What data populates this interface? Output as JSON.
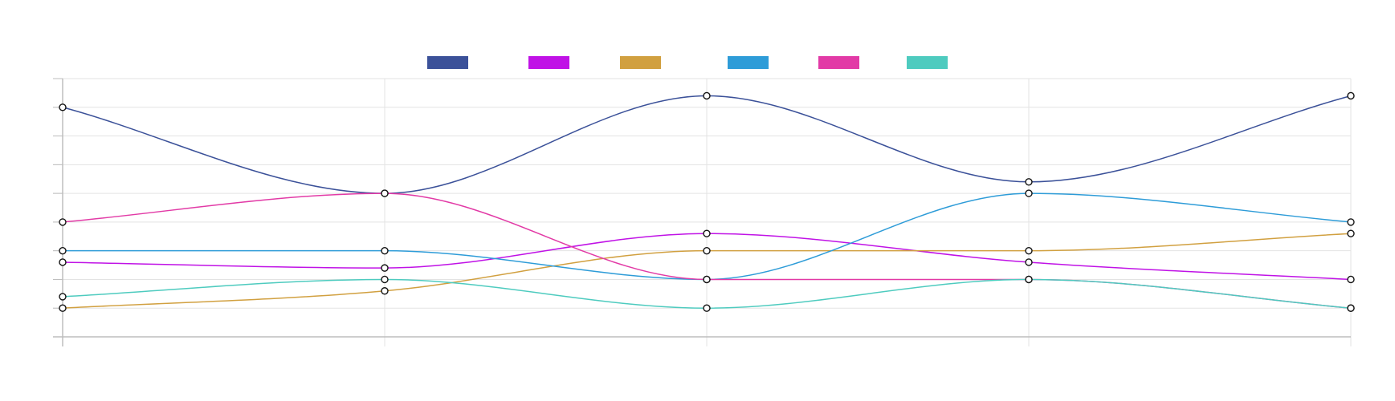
{
  "chart_data": {
    "type": "line",
    "title": "",
    "xlabel": "",
    "ylabel": "",
    "categories": [
      "",
      "",
      "",
      "",
      ""
    ],
    "ylim": [
      0,
      9
    ],
    "grid": true,
    "legend_position": "top-center",
    "curve": "smooth",
    "series": [
      {
        "name": "",
        "color": "#3b5199",
        "values": [
          8,
          5,
          8.4,
          5.4,
          8.4
        ]
      },
      {
        "name": "",
        "color": "#c012e6",
        "values": [
          2.6,
          2.4,
          3.6,
          2.6,
          2
        ]
      },
      {
        "name": "",
        "color": "#d1a040",
        "values": [
          1,
          1.6,
          3,
          3,
          3.6
        ]
      },
      {
        "name": "",
        "color": "#2e9cd8",
        "values": [
          3,
          3,
          2,
          5,
          4
        ]
      },
      {
        "name": "",
        "color": "#e23aa6",
        "values": [
          4,
          5,
          2,
          2,
          1
        ]
      },
      {
        "name": "",
        "color": "#4ecbbf",
        "values": [
          1.4,
          2,
          1,
          2,
          1
        ]
      }
    ]
  }
}
